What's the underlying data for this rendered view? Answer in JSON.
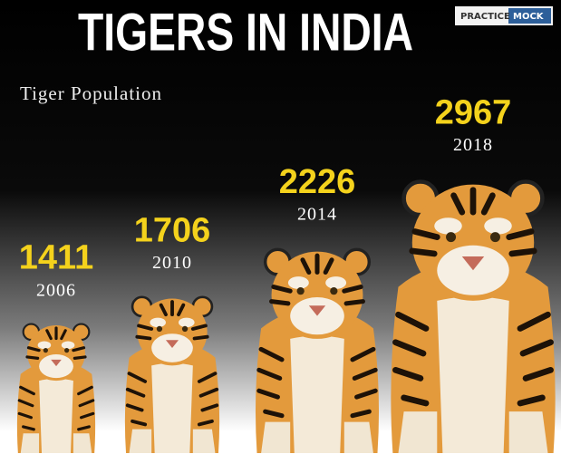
{
  "logo": {
    "left": "PRACTICE",
    "right": "MOCK"
  },
  "chart_data": {
    "type": "pictograph",
    "title": "TIGERS IN INDIA",
    "subtitle": "Tiger Population",
    "categories": [
      "2006",
      "2010",
      "2014",
      "2018"
    ],
    "values": [
      1411,
      1706,
      2226,
      2967
    ],
    "label_color": "#f4d21c",
    "color": "#e39a3c"
  }
}
